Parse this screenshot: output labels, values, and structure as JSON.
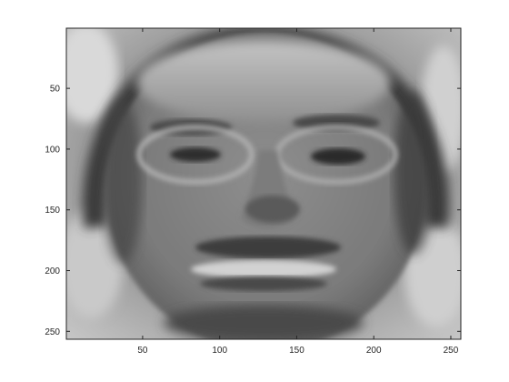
{
  "chart_data": {
    "type": "heatmap",
    "title": "",
    "xlabel": "",
    "ylabel": "",
    "colormap": "gray",
    "image_size": [
      256,
      256
    ],
    "xlim": [
      0.5,
      256.5
    ],
    "ylim": [
      0.5,
      256.5
    ],
    "y_direction": "reverse",
    "grid": false,
    "x_ticks": [
      {
        "value": 50,
        "label": "50"
      },
      {
        "value": 100,
        "label": "100"
      },
      {
        "value": 150,
        "label": "150"
      },
      {
        "value": 200,
        "label": "200"
      },
      {
        "value": 250,
        "label": "250"
      }
    ],
    "y_ticks": [
      {
        "value": 50,
        "label": "50"
      },
      {
        "value": 100,
        "label": "100"
      },
      {
        "value": 150,
        "label": "150"
      },
      {
        "value": 200,
        "label": "200"
      },
      {
        "value": 250,
        "label": "250"
      }
    ],
    "content": "grayscale face reconstruction image"
  },
  "colors": {
    "axis": "#262626",
    "background": "#ffffff",
    "image_mid_gray": "#8a8a8a",
    "image_dark": "#2b2b2b",
    "image_light": "#d8d8d8"
  }
}
